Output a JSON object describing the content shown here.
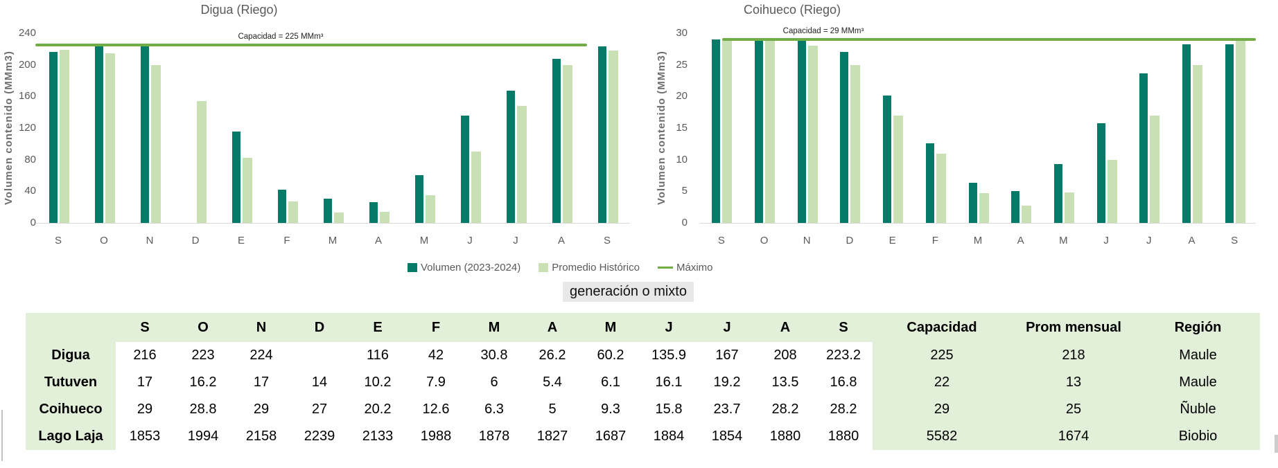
{
  "colors": {
    "volumen": "#067a68",
    "promedio": "#c8e0b4",
    "maximo": "#70ad47",
    "axis_text": "#595959",
    "table_bg": "#e2efd9",
    "banner_bg": "#e8e8e8"
  },
  "legend": {
    "volumen": "Volumen (2023-2024)",
    "promedio": "Promedio Histórico",
    "maximo": "Máximo"
  },
  "banner": {
    "label": "generación o mixto"
  },
  "chart_data": [
    {
      "type": "bar",
      "title": "Digua (Riego)",
      "ylabel": "Volumen contenido (MMm3)",
      "categories": [
        "S",
        "O",
        "N",
        "D",
        "E",
        "F",
        "M",
        "A",
        "M",
        "J",
        "J",
        "A",
        "S"
      ],
      "series": [
        {
          "name": "Volumen (2023-2024)",
          "values": [
            216,
            223,
            224,
            null,
            116,
            42,
            30.8,
            26.2,
            60.2,
            135.9,
            167,
            208,
            223.2
          ]
        },
        {
          "name": "Promedio Histórico",
          "values": [
            219,
            215,
            200,
            154,
            82,
            27,
            13,
            14,
            35,
            90,
            148,
            200,
            218
          ]
        }
      ],
      "max_line": {
        "value": 225,
        "label": "Capacidad = 225 MMm³",
        "name": "Máximo"
      },
      "ylim": [
        0,
        240
      ],
      "ytick_step": 40,
      "grid": false,
      "legend_position": "bottom"
    },
    {
      "type": "bar",
      "title": "Coihueco (Riego)",
      "ylabel": "Volumen contenido (MMm3)",
      "categories": [
        "S",
        "O",
        "N",
        "D",
        "E",
        "F",
        "M",
        "A",
        "M",
        "J",
        "J",
        "A",
        "S"
      ],
      "series": [
        {
          "name": "Volumen (2023-2024)",
          "values": [
            29,
            28.8,
            29,
            27,
            20.2,
            12.6,
            6.3,
            5,
            9.3,
            15.8,
            23.7,
            28.2,
            28.2
          ]
        },
        {
          "name": "Promedio Histórico",
          "values": [
            29,
            29,
            28,
            25,
            17,
            11,
            4.7,
            2.7,
            4.8,
            10,
            17,
            25,
            29
          ]
        }
      ],
      "max_line": {
        "value": 29,
        "label": "Capacidad = 29 MMm³",
        "name": "Máximo"
      },
      "ylim": [
        0,
        30
      ],
      "ytick_step": 5,
      "grid": false,
      "legend_position": "none"
    }
  ],
  "table": {
    "month_headers": [
      "S",
      "O",
      "N",
      "D",
      "E",
      "F",
      "M",
      "A",
      "M",
      "J",
      "J",
      "A",
      "S"
    ],
    "extra_headers": [
      "Capacidad",
      "Prom mensual",
      "Región"
    ],
    "rows": [
      {
        "name": "Digua",
        "months": [
          "216",
          "223",
          "224",
          "",
          "116",
          "42",
          "30.8",
          "26.2",
          "60.2",
          "135.9",
          "167",
          "208",
          "223.2"
        ],
        "capacidad": "225",
        "prom_mensual": "218",
        "region": "Maule"
      },
      {
        "name": "Tutuven",
        "months": [
          "17",
          "16.2",
          "17",
          "14",
          "10.2",
          "7.9",
          "6",
          "5.4",
          "6.1",
          "16.1",
          "19.2",
          "13.5",
          "16.8"
        ],
        "capacidad": "22",
        "prom_mensual": "13",
        "region": "Maule"
      },
      {
        "name": "Coihueco",
        "months": [
          "29",
          "28.8",
          "29",
          "27",
          "20.2",
          "12.6",
          "6.3",
          "5",
          "9.3",
          "15.8",
          "23.7",
          "28.2",
          "28.2"
        ],
        "capacidad": "29",
        "prom_mensual": "25",
        "region": "Ñuble"
      },
      {
        "name": "Lago Laja",
        "months": [
          "1853",
          "1994",
          "2158",
          "2239",
          "2133",
          "1988",
          "1878",
          "1827",
          "1687",
          "1884",
          "1854",
          "1880",
          "1880"
        ],
        "capacidad": "5582",
        "prom_mensual": "1674",
        "region": "Biobio"
      }
    ]
  }
}
